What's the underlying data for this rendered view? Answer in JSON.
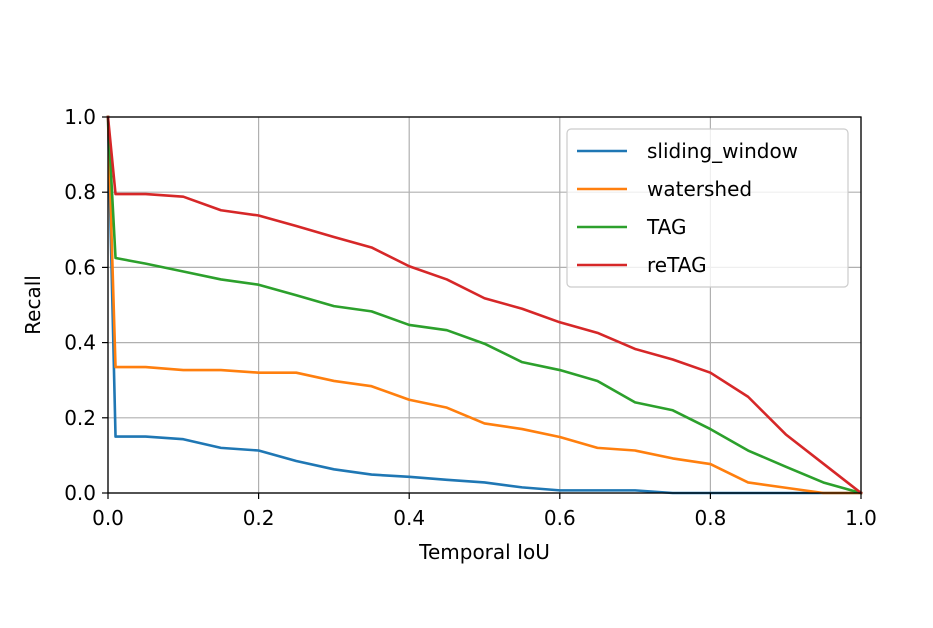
{
  "chart_data": {
    "type": "line",
    "xlabel": "Temporal IoU",
    "ylabel": "Recall",
    "xlim": [
      0.0,
      1.0
    ],
    "ylim": [
      0.0,
      1.0
    ],
    "xticks": [
      0.0,
      0.2,
      0.4,
      0.6,
      0.8,
      1.0
    ],
    "yticks": [
      0.0,
      0.2,
      0.4,
      0.6,
      0.8,
      1.0
    ],
    "xtick_labels": [
      "0.0",
      "0.2",
      "0.4",
      "0.6",
      "0.8",
      "1.0"
    ],
    "ytick_labels": [
      "0.0",
      "0.2",
      "0.4",
      "0.6",
      "0.8",
      "1.0"
    ],
    "grid": true,
    "legend_position": "top-right",
    "series": [
      {
        "name": "sliding_window",
        "color": "#1f77b4",
        "x": [
          0.0,
          0.01,
          0.05,
          0.1,
          0.15,
          0.2,
          0.25,
          0.3,
          0.35,
          0.4,
          0.45,
          0.5,
          0.55,
          0.6,
          0.65,
          0.7,
          0.75,
          0.8,
          0.85,
          0.9,
          0.95,
          1.0
        ],
        "y": [
          1.0,
          0.15,
          0.15,
          0.143,
          0.12,
          0.113,
          0.085,
          0.063,
          0.049,
          0.043,
          0.035,
          0.028,
          0.015,
          0.007,
          0.007,
          0.007,
          0.0,
          0.0,
          0.0,
          0.0,
          0.0,
          0.0
        ]
      },
      {
        "name": "watershed",
        "color": "#ff7f0e",
        "x": [
          0.0,
          0.01,
          0.05,
          0.1,
          0.15,
          0.2,
          0.25,
          0.3,
          0.35,
          0.4,
          0.45,
          0.5,
          0.55,
          0.6,
          0.65,
          0.7,
          0.75,
          0.8,
          0.85,
          0.9,
          0.95,
          1.0
        ],
        "y": [
          1.0,
          0.335,
          0.335,
          0.327,
          0.327,
          0.32,
          0.32,
          0.298,
          0.284,
          0.248,
          0.227,
          0.185,
          0.17,
          0.149,
          0.12,
          0.113,
          0.092,
          0.077,
          0.028,
          0.014,
          0.0,
          0.0
        ]
      },
      {
        "name": "TAG",
        "color": "#2ca02c",
        "x": [
          0.0,
          0.01,
          0.05,
          0.1,
          0.15,
          0.2,
          0.25,
          0.3,
          0.35,
          0.4,
          0.45,
          0.5,
          0.55,
          0.6,
          0.65,
          0.7,
          0.75,
          0.8,
          0.85,
          0.9,
          0.95,
          1.0
        ],
        "y": [
          1.0,
          0.625,
          0.61,
          0.589,
          0.568,
          0.554,
          0.526,
          0.497,
          0.483,
          0.447,
          0.433,
          0.397,
          0.348,
          0.327,
          0.298,
          0.241,
          0.22,
          0.17,
          0.113,
          0.07,
          0.028,
          0.0
        ]
      },
      {
        "name": "reTAG",
        "color": "#d62728",
        "x": [
          0.0,
          0.01,
          0.05,
          0.1,
          0.15,
          0.2,
          0.25,
          0.3,
          0.35,
          0.4,
          0.45,
          0.5,
          0.55,
          0.6,
          0.65,
          0.7,
          0.75,
          0.8,
          0.85,
          0.9,
          0.95,
          1.0
        ],
        "y": [
          1.0,
          0.795,
          0.795,
          0.788,
          0.752,
          0.738,
          0.71,
          0.681,
          0.653,
          0.603,
          0.568,
          0.518,
          0.49,
          0.454,
          0.426,
          0.383,
          0.355,
          0.32,
          0.256,
          0.156,
          0.078,
          0.0
        ]
      }
    ]
  }
}
